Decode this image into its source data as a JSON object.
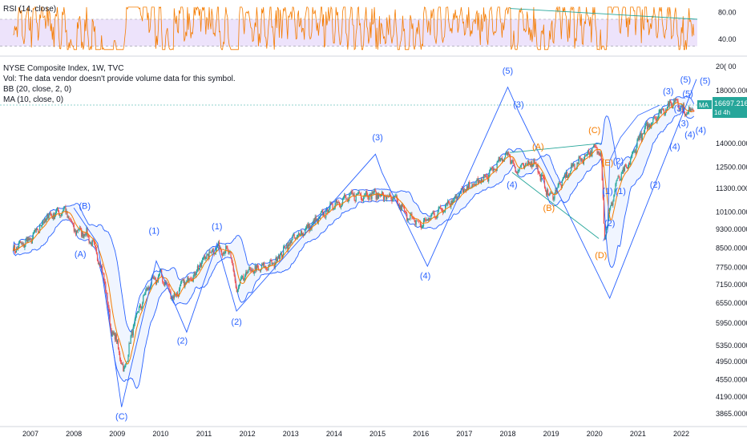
{
  "rsi_panel": {
    "legend": "RSI (14, close)",
    "ticks": [
      {
        "label": "80.00",
        "value": 80
      },
      {
        "label": "40.00",
        "value": 40
      }
    ],
    "band_upper": 70,
    "band_lower": 30,
    "ylim": [
      20,
      95
    ],
    "colors": {
      "line": "#f57c00",
      "band": "#ede3fb",
      "band_edge": "#9598a1",
      "trend": "#26a69a"
    }
  },
  "main_panel": {
    "legends": [
      "NYSE Composite Index, 1W, TVC",
      "Vol: The data vendor doesn't provide volume data for this symbol.",
      "BB (20, close, 2, 0)",
      "MA (10, close, 0)"
    ],
    "price_ticks": [
      "20(",
      ".000",
      "18000.0000",
      "14000.0000",
      "12500.0000",
      "11300.0000",
      "10100.0000",
      "9300.0000",
      "8500.0000",
      "7750.0000",
      "7150.0000",
      "6550.0000",
      "5950.0000",
      "5350.0000",
      "4950.0000",
      "4550.0000",
      "4190.0000",
      "3865.0000"
    ],
    "last_price_label": "16697.2162",
    "last_price_sub": "1d 4h",
    "ma_badge": "MA",
    "x_ticks": [
      "2007",
      "2008",
      "2009",
      "2010",
      "2011",
      "2012",
      "2013",
      "2014",
      "2015",
      "2016",
      "2017",
      "2018",
      "2019",
      "2020",
      "2021",
      "2022"
    ],
    "colors": {
      "bb": "#2962ff",
      "bb_fill": "#e3ecff",
      "ma": "#f57c00",
      "wave_blue": "#2962ff",
      "wave_orange": "#f57c00",
      "trend": "#26a69a",
      "price_badge": "#26a69a"
    }
  },
  "wave_labels": [
    {
      "text": "(B)",
      "color": "blue"
    },
    {
      "text": "(A)",
      "color": "blue"
    },
    {
      "text": "(C)",
      "color": "blue"
    },
    {
      "text": "(1)",
      "color": "blue"
    },
    {
      "text": "(2)",
      "color": "blue"
    },
    {
      "text": "(1)",
      "color": "blue"
    },
    {
      "text": "(2)",
      "color": "blue"
    },
    {
      "text": "(3)",
      "color": "blue"
    },
    {
      "text": "(4)",
      "color": "blue"
    },
    {
      "text": "(5)",
      "color": "blue"
    },
    {
      "text": "(3)",
      "color": "blue"
    },
    {
      "text": "(4)",
      "color": "blue"
    },
    {
      "text": "(A)",
      "color": "orange"
    },
    {
      "text": "(B)",
      "color": "orange"
    },
    {
      "text": "(C)",
      "color": "orange"
    },
    {
      "text": "(D)",
      "color": "orange"
    },
    {
      "text": "(E)",
      "color": "orange"
    },
    {
      "text": "(1)",
      "color": "blue"
    },
    {
      "text": "(2)",
      "color": "blue"
    },
    {
      "text": "(1)",
      "color": "blue"
    },
    {
      "text": "(2)",
      "color": "blue"
    },
    {
      "text": "(2)",
      "color": "blue"
    },
    {
      "text": "(3)",
      "color": "blue"
    },
    {
      "text": "(3)",
      "color": "blue"
    },
    {
      "text": "(3)",
      "color": "blue"
    },
    {
      "text": "(4)",
      "color": "blue"
    },
    {
      "text": "(4)",
      "color": "blue"
    },
    {
      "text": "(4)",
      "color": "blue"
    },
    {
      "text": "(5)",
      "color": "blue"
    },
    {
      "text": "(5)",
      "color": "blue"
    },
    {
      "text": "(5)",
      "color": "blue"
    }
  ],
  "chart_data": {
    "type": "line",
    "title": "NYSE Composite Index, 1W, TVC",
    "scale": "log",
    "ylim": [
      3700,
      21000
    ],
    "x_range": [
      2006.6,
      2022.6
    ],
    "series": [
      {
        "name": "NYSE Composite Index",
        "x": [
          2006.6,
          2007.0,
          2007.4,
          2007.8,
          2008.0,
          2008.3,
          2008.5,
          2008.7,
          2008.85,
          2009.0,
          2009.15,
          2009.4,
          2009.7,
          2010.0,
          2010.3,
          2010.5,
          2010.8,
          2011.0,
          2011.3,
          2011.6,
          2011.75,
          2012.0,
          2012.3,
          2012.6,
          2013.0,
          2013.5,
          2014.0,
          2014.5,
          2015.0,
          2015.4,
          2015.7,
          2016.0,
          2016.5,
          2017.0,
          2017.5,
          2018.0,
          2018.2,
          2018.6,
          2018.98,
          2019.5,
          2019.95,
          2020.15,
          2020.23,
          2020.5,
          2020.8,
          2021.0,
          2021.3,
          2021.6,
          2021.9,
          2022.1,
          2022.3
        ],
        "y": [
          8450,
          8850,
          9900,
          10200,
          9300,
          9100,
          8400,
          7400,
          5800,
          5400,
          4700,
          6000,
          7050,
          7500,
          6700,
          7150,
          7550,
          8100,
          8550,
          8300,
          6950,
          7600,
          7700,
          7900,
          8800,
          9500,
          10500,
          10950,
          11000,
          10700,
          9900,
          9500,
          10300,
          11200,
          11900,
          13400,
          12300,
          12900,
          10800,
          12500,
          13600,
          13500,
          9000,
          11600,
          12700,
          14200,
          15500,
          16500,
          17200,
          16100,
          16700
        ]
      },
      {
        "name": "RSI",
        "values_note": "oscillates between 35 and 85",
        "peak": 87,
        "trough": 30,
        "last": 40
      }
    ]
  }
}
